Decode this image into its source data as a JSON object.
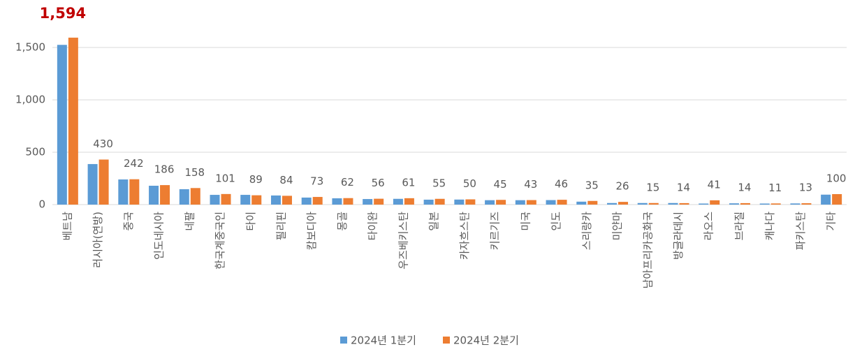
{
  "chart_data": {
    "type": "bar",
    "categories": [
      "베트남",
      "러시아(연방)",
      "중국",
      "인도네시아",
      "네팔",
      "한국계중국인",
      "타이",
      "필리핀",
      "캄보디아",
      "몽골",
      "타이완",
      "우즈베키스탄",
      "일본",
      "카자흐스탄",
      "키르기즈",
      "미국",
      "인도",
      "스리랑카",
      "미얀마",
      "남아프리카공화국",
      "방글라데시",
      "라오스",
      "브라질",
      "캐나다",
      "파키스탄",
      "기타"
    ],
    "series": [
      {
        "name": "2024년 1분기",
        "color": "#5b9bd5",
        "values": [
          1525,
          387,
          240,
          180,
          147,
          93,
          93,
          87,
          67,
          60,
          53,
          55,
          47,
          48,
          42,
          42,
          43,
          28,
          15,
          15,
          15,
          10,
          12,
          10,
          11,
          95
        ]
      },
      {
        "name": "2024년 2분기",
        "color": "#ed7d31",
        "values": [
          1594,
          430,
          242,
          186,
          158,
          101,
          89,
          84,
          73,
          62,
          56,
          61,
          55,
          50,
          45,
          43,
          46,
          35,
          26,
          15,
          14,
          41,
          14,
          11,
          13,
          100
        ],
        "value_labels": [
          "1,594",
          "430",
          "242",
          "186",
          "158",
          "101",
          "89",
          "84",
          "73",
          "62",
          "56",
          "61",
          "55",
          "50",
          "45",
          "43",
          "46",
          "35",
          "26",
          "15",
          "14",
          "41",
          "14",
          "11",
          "13",
          "100"
        ],
        "label_highlight": {
          "index": 0,
          "color": "#c00000"
        }
      }
    ],
    "ylim": [
      0,
      1750
    ],
    "yticks": [
      0,
      500,
      {
        "value": 1000,
        "label": "1,000"
      },
      {
        "value": 1500,
        "label": "1,500"
      }
    ],
    "grid": true,
    "legend": "bottom"
  }
}
